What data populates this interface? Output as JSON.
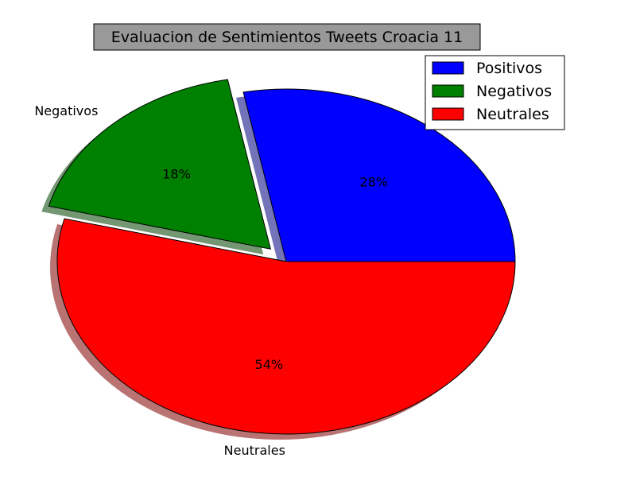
{
  "chart_data": {
    "type": "pie",
    "title": "Evaluacion de Sentimientos Tweets Croacia 11",
    "slices": [
      {
        "label": "Positivos",
        "value": 28,
        "pct_label": "28%",
        "color": "#0000ff",
        "outer_label": "",
        "exploded": false
      },
      {
        "label": "Negativos",
        "value": 18,
        "pct_label": "18%",
        "color": "#008000",
        "outer_label": "Negativos",
        "exploded": true
      },
      {
        "label": "Neutrales",
        "value": 54,
        "pct_label": "54%",
        "color": "#ff0000",
        "outer_label": "Neutrales",
        "exploded": false
      }
    ],
    "start_angle_deg": 0,
    "direction": "counterclockwise",
    "shadow": true,
    "legend": {
      "placement": "top-right",
      "entries": [
        "Positivos",
        "Negativos",
        "Neutrales"
      ]
    }
  }
}
